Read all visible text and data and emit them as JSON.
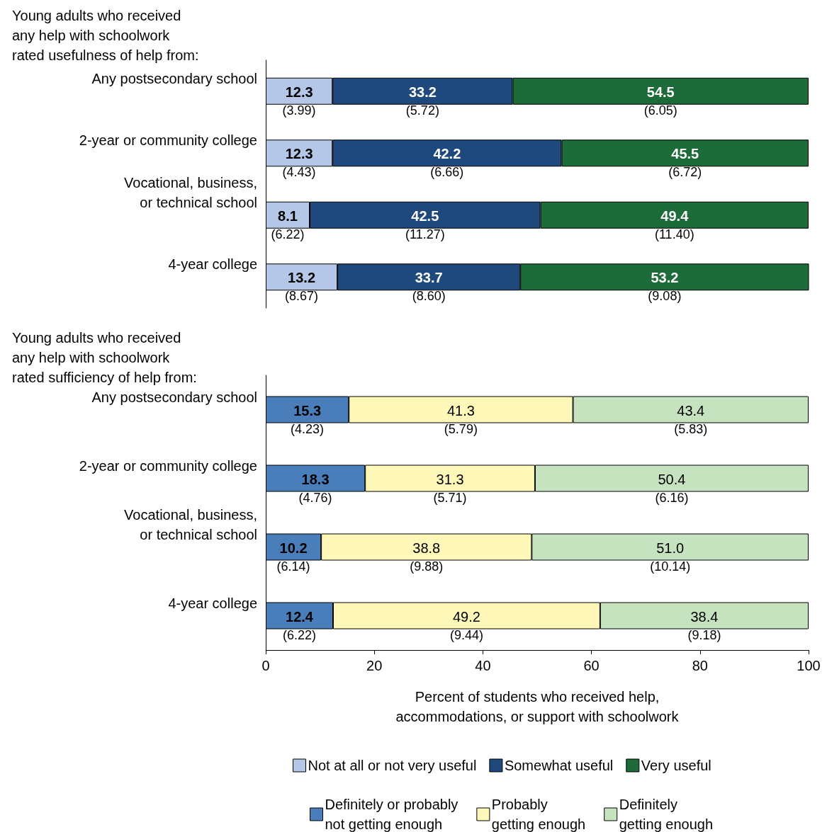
{
  "chart_data": [
    {
      "type": "bar",
      "orientation": "horizontal",
      "stacked": true,
      "title": "Young adults who received\nany help with schoolwork\nrated usefulness of help from:",
      "categories": [
        "Any postsecondary school",
        "2-year or community college",
        "Vocational, business,\nor technical school",
        "4-year college"
      ],
      "xlim": [
        0,
        100
      ],
      "tick_labels": "y",
      "legend": "bottom",
      "grid": false,
      "series": [
        {
          "name": "Not at all or not very useful",
          "color": "#b4c7e7",
          "values": [
            12.3,
            12.3,
            8.1,
            13.2
          ],
          "value_labels": [
            "12.3\n(3.99)",
            "12.3\n(4.43)",
            "8.1\n(6.22)",
            "13.2\n(8.67)"
          ]
        },
        {
          "name": "Somewhat useful",
          "color": "#1f497d",
          "values": [
            33.2,
            42.2,
            42.5,
            33.7
          ],
          "value_labels": [
            "33.2\n(5.72)",
            "42.2\n(6.66)",
            "42.5\n(11.27)",
            "33.7\n(8.60)"
          ]
        },
        {
          "name": "Very useful",
          "color": "#1e6b3a",
          "values": [
            54.5,
            45.5,
            49.4,
            53.2
          ],
          "value_labels": [
            "54.5\n(6.05)",
            "45.5\n(6.72)",
            "49.4\n(11.40)",
            "53.2\n(9.08)"
          ]
        }
      ]
    },
    {
      "type": "bar",
      "orientation": "horizontal",
      "stacked": true,
      "title": "Young adults who received\nany help with schoolwork\nrated sufficiency of help from:",
      "categories": [
        "Any postsecondary school",
        "2-year or community college",
        "Vocational, business,\nor technical school",
        "4-year college"
      ],
      "xlim": [
        0,
        100
      ],
      "xticks": [
        0,
        20,
        40,
        60,
        80,
        100
      ],
      "xlabel": "Percent of students who received help,\naccommodations, or support with schoolwork",
      "legend": "bottom",
      "grid": false,
      "series": [
        {
          "name": "Definitely or probably\nnot getting enough",
          "color": "#4a7ebb",
          "values": [
            15.3,
            18.3,
            10.2,
            12.4
          ],
          "value_labels": [
            "15.3\n(4.23)",
            "18.3\n(4.76)",
            "10.2\n(6.14)",
            "12.4\n(6.22)"
          ]
        },
        {
          "name": "Probably\ngetting enough",
          "color": "#fff8b8",
          "values": [
            41.3,
            31.3,
            38.8,
            49.2
          ],
          "value_labels": [
            "41.3\n(5.79)",
            "31.3\n(5.71)",
            "38.8\n(9.88)",
            "49.2\n(9.44)"
          ]
        },
        {
          "name": "Definitely\ngetting enough",
          "color": "#c6e3c0",
          "values": [
            43.4,
            50.4,
            51.0,
            38.4
          ],
          "value_labels": [
            "43.4\n(5.83)",
            "50.4\n(6.16)",
            "51.0\n(10.14)",
            "38.4\n(9.18)"
          ]
        }
      ]
    }
  ]
}
